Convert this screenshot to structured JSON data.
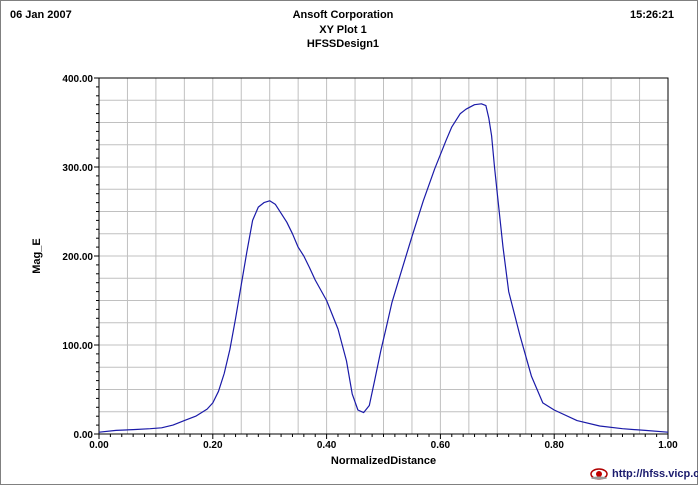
{
  "header": {
    "date": "06 Jan 2007",
    "company": "Ansoft Corporation",
    "plot_name": "XY Plot 1",
    "design": "HFSSDesign1",
    "time": "15:26:21"
  },
  "watermark": {
    "text": "http://hfss.vicp.cc",
    "logo_icon": "eye-logo-icon"
  },
  "chart_data": {
    "type": "line",
    "xlabel": "NormalizedDistance",
    "ylabel": "Mag_E",
    "xlim": [
      0,
      1
    ],
    "ylim": [
      0,
      400
    ],
    "x_ticks": [
      "0.00",
      "0.20",
      "0.40",
      "0.60",
      "0.80",
      "1.00"
    ],
    "y_ticks": [
      "0.00",
      "100.00",
      "200.00",
      "300.00",
      "400.00"
    ],
    "grid": true,
    "colors": {
      "line": "#1a1aa8",
      "grid": "#c0c0c0",
      "axis": "#000000"
    },
    "series": [
      {
        "x": [
          0.0,
          0.03,
          0.06,
          0.09,
          0.11,
          0.13,
          0.15,
          0.17,
          0.19,
          0.2,
          0.21,
          0.22,
          0.23,
          0.24,
          0.25,
          0.26,
          0.27,
          0.28,
          0.29,
          0.3,
          0.31,
          0.32,
          0.33,
          0.34,
          0.35,
          0.36,
          0.37,
          0.38,
          0.4,
          0.42,
          0.435,
          0.445,
          0.455,
          0.465,
          0.475,
          0.485,
          0.495,
          0.505,
          0.515,
          0.53,
          0.55,
          0.57,
          0.59,
          0.61,
          0.62,
          0.635,
          0.645,
          0.66,
          0.672,
          0.68,
          0.685,
          0.69,
          0.695,
          0.7,
          0.71,
          0.72,
          0.74,
          0.76,
          0.78,
          0.8,
          0.84,
          0.88,
          0.92,
          0.96,
          1.0
        ],
        "y": [
          2,
          4,
          5,
          6,
          7,
          10,
          15,
          20,
          28,
          35,
          48,
          68,
          95,
          130,
          168,
          205,
          240,
          255,
          260,
          262,
          258,
          248,
          238,
          225,
          210,
          200,
          187,
          173,
          150,
          118,
          82,
          45,
          27,
          24,
          32,
          62,
          93,
          120,
          148,
          180,
          222,
          262,
          298,
          330,
          345,
          360,
          365,
          370,
          371,
          369,
          355,
          335,
          300,
          270,
          210,
          160,
          110,
          65,
          35,
          27,
          15,
          9,
          6,
          4,
          2
        ]
      }
    ]
  }
}
